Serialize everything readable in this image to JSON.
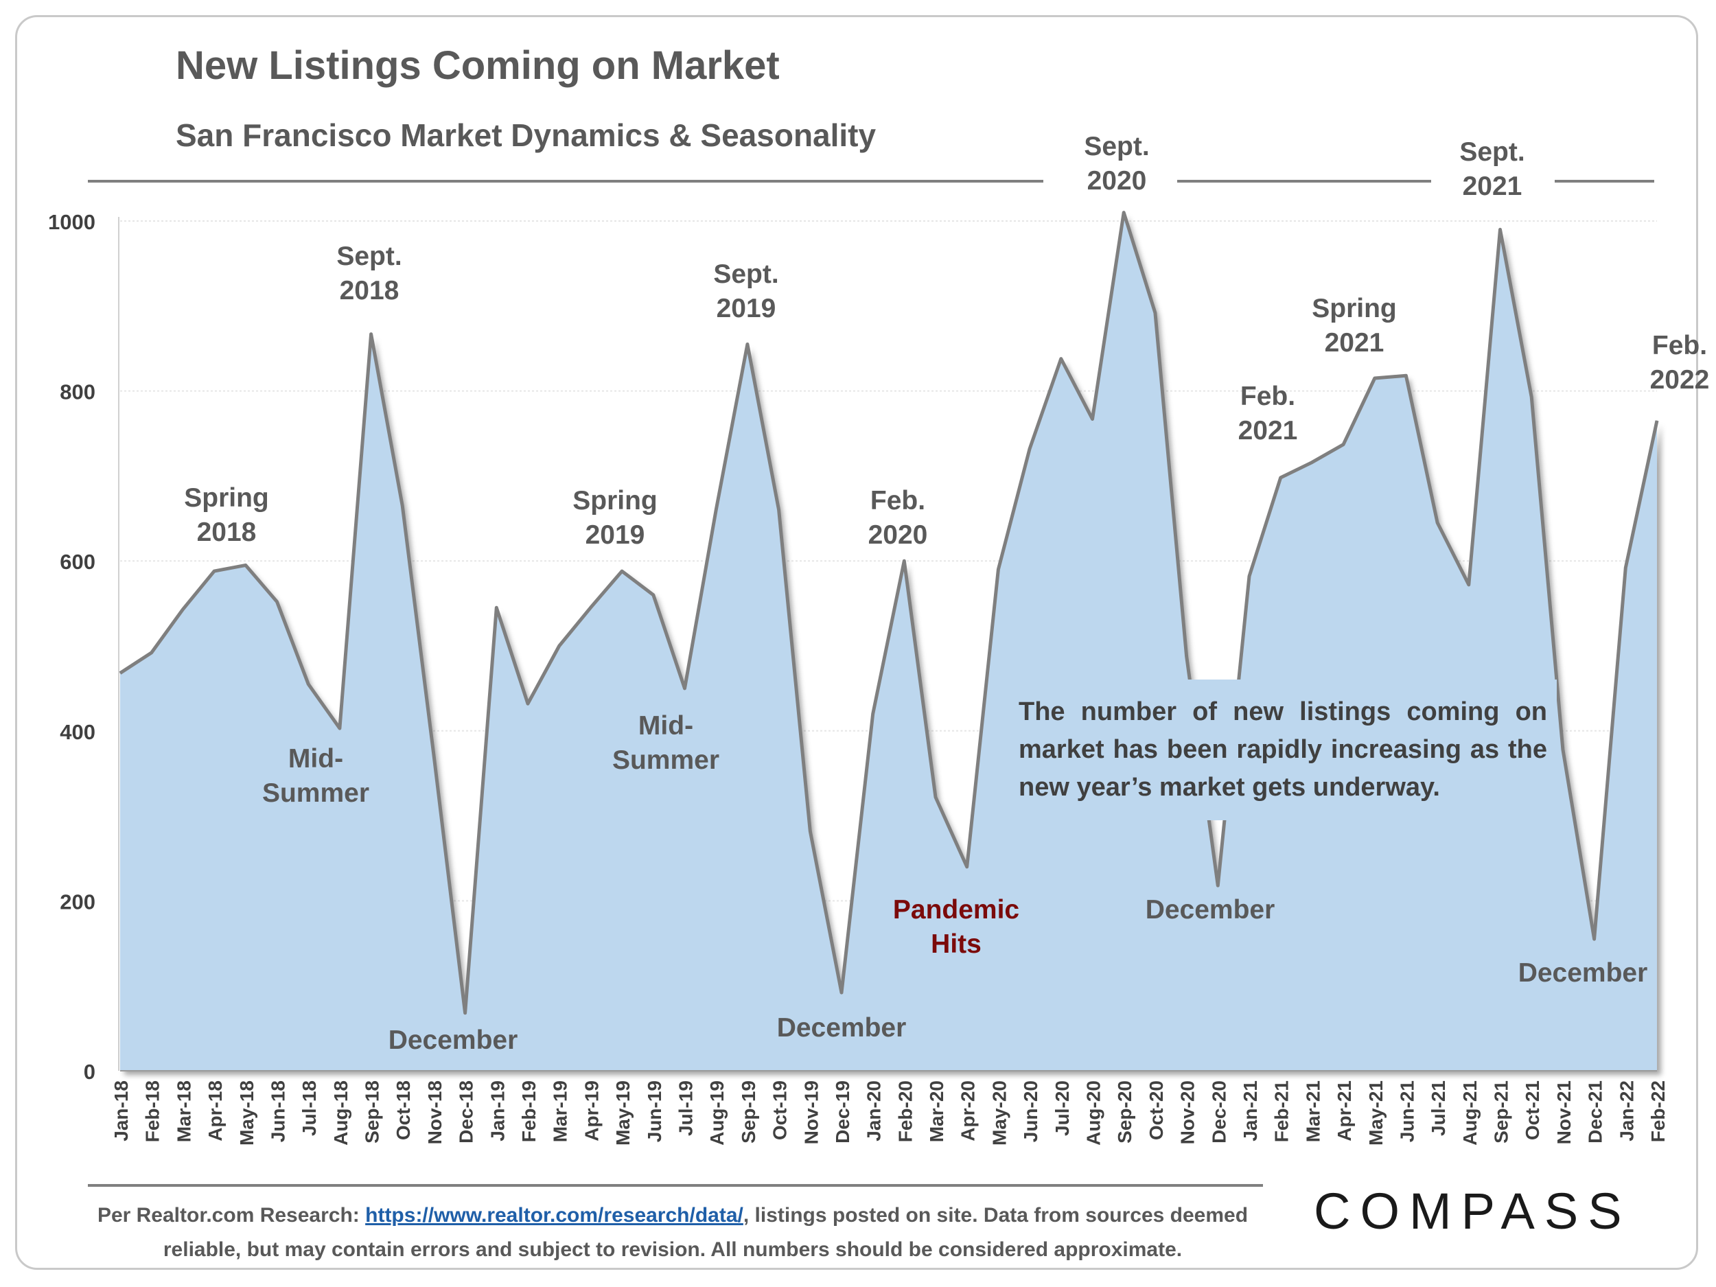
{
  "title": "New Listings Coming on Market",
  "subtitle": "San Francisco Market Dynamics & Seasonality",
  "colors": {
    "fill": "#bdd7ee",
    "line": "#7f7f7f",
    "text": "#595959",
    "pandemic": "#7b0a0a"
  },
  "chart_data": {
    "type": "area",
    "title": "New Listings Coming on Market",
    "subtitle": "San Francisco Market Dynamics & Seasonality",
    "ylim": [
      0,
      1000
    ],
    "yticks": [
      "0",
      "200",
      "400",
      "600",
      "800",
      "1000"
    ],
    "grid": true,
    "x": [
      "Jan-18",
      "Feb-18",
      "Mar-18",
      "Apr-18",
      "May-18",
      "Jun-18",
      "Jul-18",
      "Aug-18",
      "Sep-18",
      "Oct-18",
      "Nov-18",
      "Dec-18",
      "Jan-19",
      "Feb-19",
      "Mar-19",
      "Apr-19",
      "May-19",
      "Jun-19",
      "Jul-19",
      "Aug-19",
      "Sep-19",
      "Oct-19",
      "Nov-19",
      "Dec-19",
      "Jan-20",
      "Feb-20",
      "Mar-20",
      "Apr-20",
      "May-20",
      "Jun-20",
      "Jul-20",
      "Aug-20",
      "Sep-20",
      "Oct-20",
      "Nov-20",
      "Dec-20",
      "Jan-21",
      "Feb-21",
      "Mar-21",
      "Apr-21",
      "May-21",
      "Jun-21",
      "Jul-21",
      "Aug-21",
      "Sep-21",
      "Oct-21",
      "Nov-21",
      "Dec-21",
      "Jan-22",
      "Feb-22"
    ],
    "values": [
      468,
      492,
      543,
      588,
      595,
      552,
      455,
      403,
      867,
      665,
      372,
      68,
      545,
      432,
      500,
      545,
      588,
      560,
      450,
      660,
      855,
      660,
      282,
      92,
      420,
      600,
      322,
      240,
      590,
      732,
      838,
      767,
      1010,
      892,
      488,
      218,
      582,
      698,
      716,
      737,
      815,
      818,
      645,
      572,
      990,
      793,
      378,
      155,
      592,
      765
    ],
    "annotations": [
      {
        "label": "Spring 2018",
        "lines": [
          "Spring",
          "2018"
        ],
        "color": "#595959"
      },
      {
        "label": "Sept. 2018",
        "lines": [
          "Sept.",
          "2018"
        ],
        "color": "#595959"
      },
      {
        "label": "Mid-Summer",
        "lines": [
          "Mid-",
          "Summer"
        ],
        "color": "#595959"
      },
      {
        "label": "December",
        "lines": [
          "December"
        ],
        "color": "#595959"
      },
      {
        "label": "Spring 2019",
        "lines": [
          "Spring",
          "2019"
        ],
        "color": "#595959"
      },
      {
        "label": "Sept. 2019",
        "lines": [
          "Sept.",
          "2019"
        ],
        "color": "#595959"
      },
      {
        "label": "Mid-Summer",
        "lines": [
          "Mid-",
          "Summer"
        ],
        "color": "#595959"
      },
      {
        "label": "December",
        "lines": [
          "December"
        ],
        "color": "#595959"
      },
      {
        "label": "Feb. 2020",
        "lines": [
          "Feb.",
          "2020"
        ],
        "color": "#595959"
      },
      {
        "label": "Pandemic Hits",
        "lines": [
          "Pandemic",
          "Hits"
        ],
        "color": "#7b0a0a"
      },
      {
        "label": "Sept. 2020",
        "lines": [
          "Sept.",
          "2020"
        ],
        "color": "#595959"
      },
      {
        "label": "December",
        "lines": [
          "December"
        ],
        "color": "#595959"
      },
      {
        "label": "Feb. 2021",
        "lines": [
          "Feb.",
          "2021"
        ],
        "color": "#595959"
      },
      {
        "label": "Spring 2021",
        "lines": [
          "Spring",
          "2021"
        ],
        "color": "#595959"
      },
      {
        "label": "Sept. 2021",
        "lines": [
          "Sept.",
          "2021"
        ],
        "color": "#595959"
      },
      {
        "label": "December",
        "lines": [
          "December"
        ],
        "color": "#595959"
      },
      {
        "label": "Feb. 2022",
        "lines": [
          "Feb.",
          "2022"
        ],
        "color": "#595959"
      }
    ],
    "note": "The number of new listings coming on market has been rapidly increasing as the new year’s market gets underway."
  },
  "footer": {
    "prefix": "Per Realtor.com Research:",
    "link": "https://www.realtor.com/research/data/",
    "suffix": ", listings posted on site. Data from sources deemed reliable, but may contain errors and subject to revision. All numbers should be considered approximate."
  },
  "logo": "COMPASS"
}
